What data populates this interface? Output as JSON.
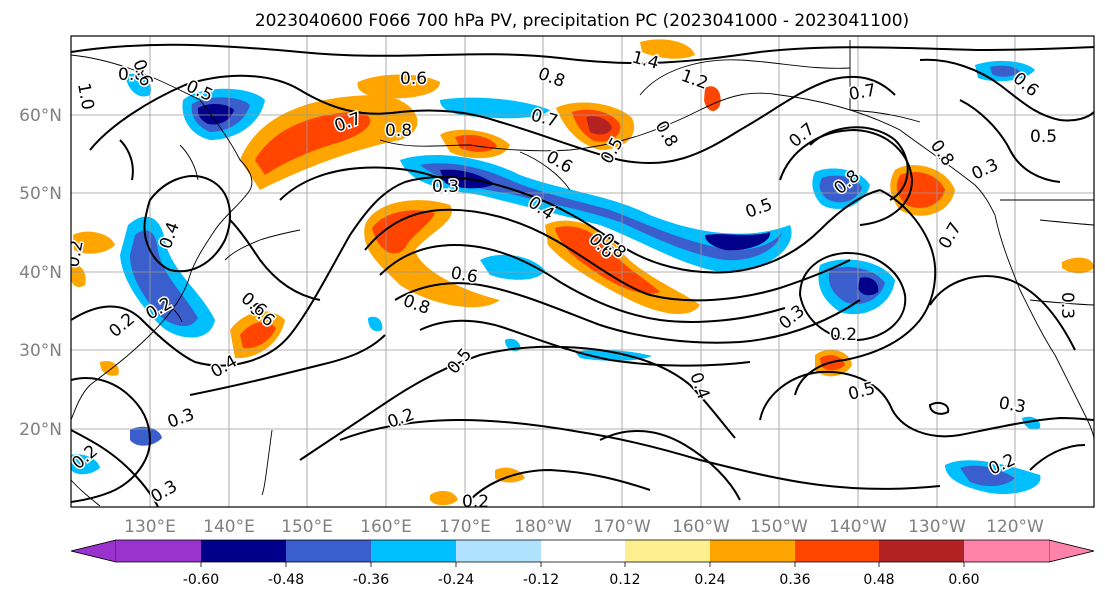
{
  "title": "2023040600 F066 700 hPa PV, precipitation PC (2023041000 - 2023041100)",
  "lat_labels": [
    "60°N",
    "50°N",
    "40°N",
    "30°N",
    "20°N"
  ],
  "lon_labels": [
    "130°E",
    "140°E",
    "150°E",
    "160°E",
    "170°E",
    "180°W",
    "170°W",
    "160°W",
    "150°W",
    "140°W",
    "130°W",
    "120°W"
  ],
  "colorbar": {
    "colors": [
      "#9a32cd",
      "#00008b",
      "#3a5fcd",
      "#00bfff",
      "#b0e2ff",
      "#ffffff",
      "#fff08f",
      "#ffa500",
      "#ff4500",
      "#b22222",
      "#ff82ab"
    ],
    "tick_labels": [
      "-0.60",
      "-0.48",
      "-0.36",
      "-0.24",
      "-0.12",
      "0.12",
      "0.24",
      "0.36",
      "0.48",
      "0.60"
    ]
  },
  "contour_labels": [
    "0.6",
    "1.0",
    "0.8",
    "0.5",
    "0.6",
    "0.7",
    "0.8",
    "0.8",
    "0.7",
    "0.6",
    "1.4",
    "1.2",
    "0.8",
    "0.5",
    "0.7",
    "0.7",
    "0.8",
    "0.6",
    "0.5",
    "0.3",
    "0.3",
    "0.4",
    "0.6",
    "0.4",
    "0.6",
    "0.8",
    "0.5",
    "0.8",
    "0.6",
    "0.5",
    "0.8",
    "0.2",
    "0.3",
    "0.2",
    "0.2",
    "0.4",
    "0.6",
    "0.2",
    "0.4",
    "0.3",
    "0.5",
    "0.2",
    "0.3",
    "0.2",
    "0.2",
    "0.3",
    "0.7",
    "0.2",
    "0.3"
  ]
}
